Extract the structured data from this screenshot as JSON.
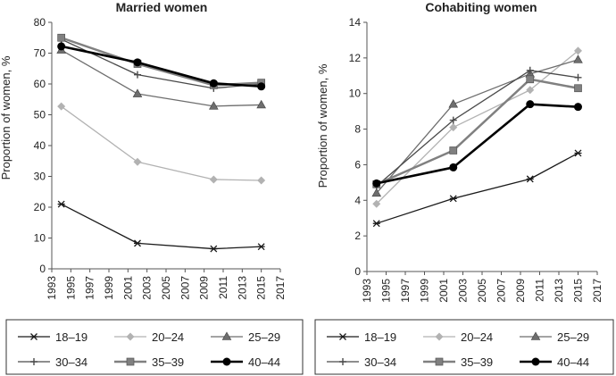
{
  "chart_data": [
    {
      "type": "line",
      "title": "Married women",
      "xlabel": "",
      "ylabel": "Proportion of women, %",
      "xlim": [
        1993,
        2017
      ],
      "ylim": [
        0,
        80
      ],
      "xticks": [
        1993,
        1995,
        1997,
        1999,
        2001,
        2003,
        2005,
        2007,
        2009,
        2011,
        2013,
        2015,
        2017
      ],
      "yticks": [
        0,
        10,
        20,
        30,
        40,
        50,
        60,
        70,
        80
      ],
      "series": [
        {
          "name": "18–19",
          "color": "#1a1a1a",
          "marker": "asterisk",
          "width": 1.3,
          "x": [
            1994,
            2002,
            2010,
            2015
          ],
          "values": [
            21,
            8.3,
            6.5,
            7.2
          ]
        },
        {
          "name": "20–24",
          "color": "#b2b2b2",
          "marker": "diamond",
          "width": 1.3,
          "x": [
            1994,
            2002,
            2010,
            2015
          ],
          "values": [
            52.7,
            34.7,
            29,
            28.7
          ]
        },
        {
          "name": "25–29",
          "color": "#6e6e6e",
          "marker": "triangle",
          "width": 1.3,
          "x": [
            1994,
            2002,
            2010,
            2015
          ],
          "values": [
            71,
            56.8,
            52.8,
            53.2
          ]
        },
        {
          "name": "30–34",
          "color": "#4a4a4a",
          "marker": "plus",
          "width": 1.3,
          "x": [
            1994,
            2002,
            2010,
            2015
          ],
          "values": [
            74.5,
            63,
            58.6,
            60
          ]
        },
        {
          "name": "35–39",
          "color": "#808080",
          "marker": "square",
          "width": 2.5,
          "x": [
            1994,
            2002,
            2010,
            2015
          ],
          "values": [
            75,
            66.5,
            59.6,
            60.4
          ]
        },
        {
          "name": "40–44",
          "color": "#000000",
          "marker": "circle",
          "width": 2.6,
          "x": [
            1994,
            2002,
            2010,
            2015
          ],
          "values": [
            72.2,
            67,
            60.2,
            59.2
          ]
        }
      ]
    },
    {
      "type": "line",
      "title": "Cohabiting women",
      "xlabel": "",
      "ylabel": "Proportion of women, %",
      "xlim": [
        1993,
        2017
      ],
      "ylim": [
        0,
        14
      ],
      "xticks": [
        1993,
        1995,
        1997,
        1999,
        2001,
        2003,
        2005,
        2007,
        2009,
        2011,
        2013,
        2015,
        2017
      ],
      "yticks": [
        0,
        2,
        4,
        6,
        8,
        10,
        12,
        14
      ],
      "series": [
        {
          "name": "18–19",
          "color": "#1a1a1a",
          "marker": "asterisk",
          "width": 1.3,
          "x": [
            1994,
            2002,
            2010,
            2015
          ],
          "values": [
            2.7,
            4.1,
            5.2,
            6.65
          ]
        },
        {
          "name": "20–24",
          "color": "#b2b2b2",
          "marker": "diamond",
          "width": 1.3,
          "x": [
            1994,
            2002,
            2010,
            2015
          ],
          "values": [
            3.8,
            8.1,
            10.2,
            12.4
          ]
        },
        {
          "name": "25–29",
          "color": "#6e6e6e",
          "marker": "triangle",
          "width": 1.3,
          "x": [
            1994,
            2002,
            2010,
            2015
          ],
          "values": [
            4.4,
            9.4,
            11.1,
            11.9
          ]
        },
        {
          "name": "30–34",
          "color": "#4a4a4a",
          "marker": "plus",
          "width": 1.3,
          "x": [
            1994,
            2002,
            2010,
            2015
          ],
          "values": [
            4.8,
            8.5,
            11.3,
            10.9
          ]
        },
        {
          "name": "35–39",
          "color": "#808080",
          "marker": "square",
          "width": 2.5,
          "x": [
            1994,
            2002,
            2010,
            2015
          ],
          "values": [
            4.9,
            6.8,
            10.8,
            10.3
          ]
        },
        {
          "name": "40–44",
          "color": "#000000",
          "marker": "circle",
          "width": 2.6,
          "x": [
            1994,
            2002,
            2010,
            2015
          ],
          "values": [
            4.95,
            5.85,
            9.4,
            9.25
          ]
        }
      ]
    }
  ]
}
